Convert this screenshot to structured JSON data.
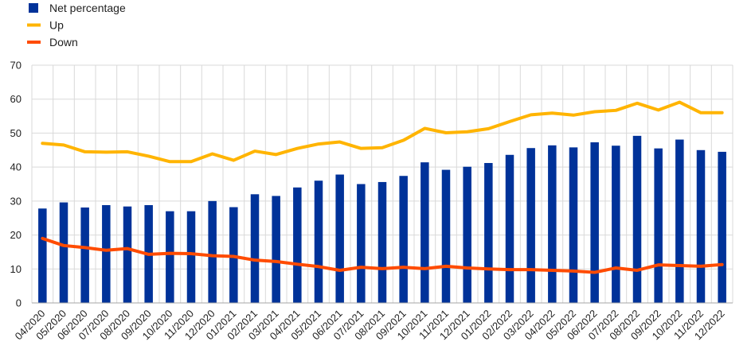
{
  "chart_data": {
    "type": "bar",
    "title": "",
    "xlabel": "",
    "ylabel": "",
    "ylim": [
      0,
      70
    ],
    "yticks": [
      0,
      10,
      20,
      30,
      40,
      50,
      60,
      70
    ],
    "grid": true,
    "legend_position": "top-left",
    "categories": [
      "04/2020",
      "05/2020",
      "06/2020",
      "07/2020",
      "08/2020",
      "09/2020",
      "10/2020",
      "11/2020",
      "12/2020",
      "01/2021",
      "02/2021",
      "03/2021",
      "04/2021",
      "05/2021",
      "06/2021",
      "07/2021",
      "08/2021",
      "09/2021",
      "10/2021",
      "11/2021",
      "12/2021",
      "01/2022",
      "02/2022",
      "03/2022",
      "04/2022",
      "05/2022",
      "06/2022",
      "07/2022",
      "08/2022",
      "09/2022",
      "10/2022",
      "11/2022",
      "12/2022"
    ],
    "series": [
      {
        "name": "Net percentage",
        "type": "bar",
        "color": "#003299",
        "values": [
          27.8,
          29.6,
          28.1,
          28.8,
          28.4,
          28.8,
          27.0,
          27.0,
          30.0,
          28.2,
          32.0,
          31.5,
          34.0,
          36.0,
          37.8,
          35.0,
          35.6,
          37.4,
          41.4,
          39.2,
          40.1,
          41.2,
          43.6,
          45.6,
          46.4,
          45.8,
          47.3,
          46.3,
          49.2,
          45.5,
          48.1,
          45.0,
          44.5
        ]
      },
      {
        "name": "Up",
        "type": "line",
        "color": "#FFB400",
        "values": [
          47.0,
          46.5,
          44.5,
          44.4,
          44.5,
          43.2,
          41.6,
          41.6,
          43.9,
          42.0,
          44.7,
          43.7,
          45.5,
          46.8,
          47.4,
          45.5,
          45.7,
          47.9,
          51.4,
          50.1,
          50.4,
          51.3,
          53.4,
          55.4,
          55.9,
          55.3,
          56.3,
          56.7,
          58.8,
          56.8,
          59.1,
          56.0,
          56.0
        ]
      },
      {
        "name": "Down",
        "type": "line",
        "color": "#FF4B00",
        "values": [
          19.0,
          16.9,
          16.3,
          15.5,
          16.0,
          14.3,
          14.6,
          14.5,
          13.9,
          13.7,
          12.6,
          12.2,
          11.4,
          10.7,
          9.6,
          10.5,
          10.1,
          10.5,
          10.1,
          10.8,
          10.3,
          10.0,
          9.8,
          9.8,
          9.6,
          9.4,
          9.0,
          10.3,
          9.6,
          11.2,
          11.0,
          10.8,
          11.3
        ]
      }
    ]
  }
}
